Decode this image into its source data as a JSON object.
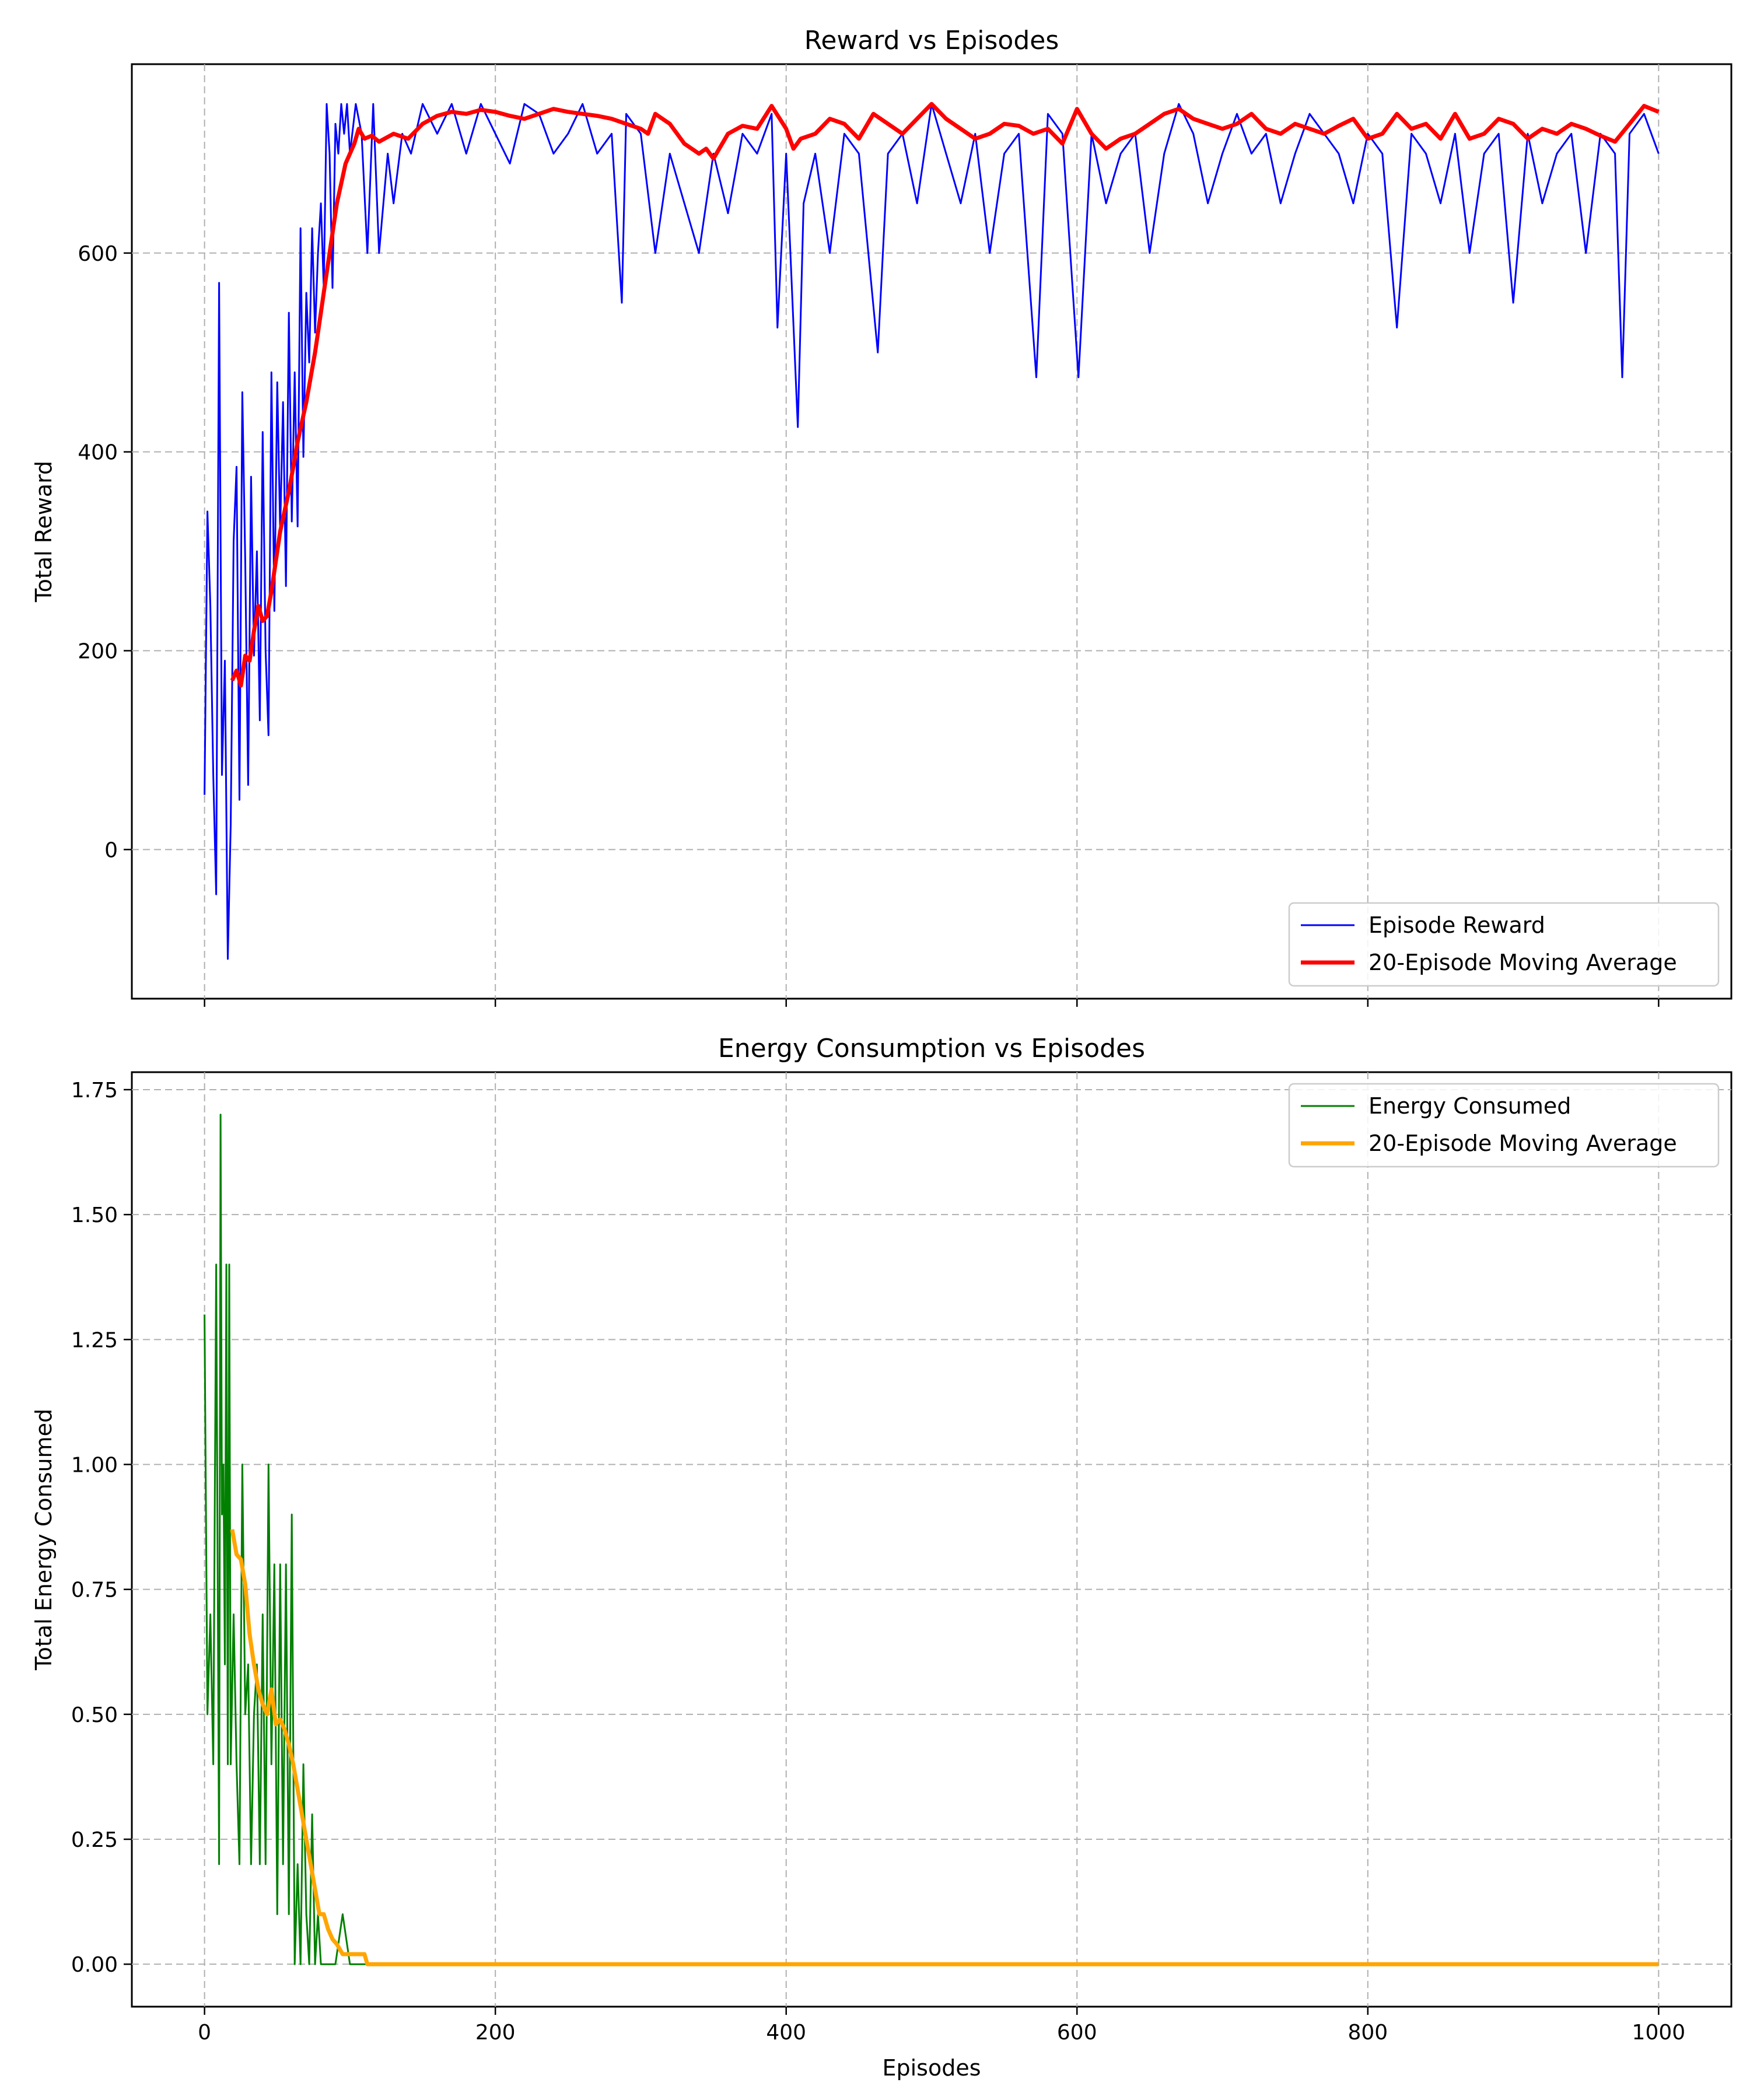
{
  "colors": {
    "reward": "#0000ff",
    "reward_ma": "#ff0000",
    "energy": "#008000",
    "energy_ma": "#ffa500",
    "grid": "#b0b0b0",
    "axes": "#000000"
  },
  "chart_data": [
    {
      "type": "line",
      "title": "Reward vs Episodes",
      "xlabel": "",
      "ylabel": "Total Reward",
      "xlim": [
        -50,
        1050
      ],
      "ylim": [
        -150,
        790
      ],
      "xticks": [
        0,
        200,
        400,
        600,
        800,
        1000
      ],
      "xtick_labels": [
        "",
        "",
        "",
        "",
        "",
        ""
      ],
      "yticks": [
        0,
        200,
        400,
        600
      ],
      "ytick_labels": [
        "0",
        "200",
        "400",
        "600"
      ],
      "grid": true,
      "legend_position": "bottom-right",
      "series": [
        {
          "name": "Episode Reward",
          "color": "#0000ff",
          "style": "thin",
          "x": [
            0,
            2,
            4,
            6,
            8,
            10,
            12,
            14,
            16,
            18,
            20,
            22,
            24,
            26,
            28,
            30,
            32,
            34,
            36,
            38,
            40,
            42,
            44,
            46,
            48,
            50,
            52,
            54,
            56,
            58,
            60,
            62,
            64,
            66,
            68,
            70,
            72,
            74,
            76,
            78,
            80,
            82,
            84,
            86,
            88,
            90,
            92,
            94,
            96,
            98,
            100,
            104,
            108,
            112,
            116,
            120,
            126,
            130,
            136,
            142,
            150,
            160,
            170,
            180,
            190,
            200,
            210,
            220,
            230,
            240,
            250,
            260,
            270,
            280,
            287,
            290,
            300,
            310,
            320,
            330,
            340,
            350,
            360,
            370,
            380,
            390,
            394,
            400,
            408,
            412,
            420,
            430,
            440,
            450,
            463,
            470,
            480,
            490,
            500,
            510,
            520,
            530,
            540,
            550,
            560,
            572,
            580,
            590,
            601,
            610,
            620,
            630,
            640,
            650,
            660,
            670,
            680,
            690,
            700,
            710,
            720,
            730,
            740,
            750,
            760,
            770,
            780,
            790,
            800,
            810,
            820,
            830,
            840,
            850,
            860,
            870,
            880,
            890,
            900,
            910,
            920,
            930,
            940,
            950,
            960,
            970,
            975,
            980,
            990,
            1000
          ],
          "y": [
            55,
            340,
            245,
            75,
            -45,
            570,
            75,
            190,
            -110,
            25,
            310,
            385,
            50,
            460,
            290,
            65,
            375,
            195,
            300,
            130,
            420,
            200,
            115,
            480,
            240,
            470,
            320,
            450,
            265,
            540,
            330,
            480,
            325,
            625,
            395,
            560,
            490,
            625,
            520,
            600,
            650,
            565,
            750,
            700,
            565,
            730,
            700,
            750,
            720,
            750,
            700,
            750,
            720,
            600,
            750,
            600,
            700,
            650,
            720,
            700,
            750,
            720,
            750,
            700,
            750,
            720,
            690,
            750,
            740,
            700,
            720,
            750,
            700,
            720,
            550,
            740,
            720,
            600,
            700,
            650,
            600,
            700,
            640,
            720,
            700,
            740,
            525,
            700,
            425,
            650,
            700,
            600,
            720,
            700,
            500,
            700,
            720,
            650,
            750,
            700,
            650,
            720,
            600,
            700,
            720,
            475,
            740,
            720,
            475,
            720,
            650,
            700,
            720,
            600,
            700,
            750,
            720,
            650,
            700,
            740,
            700,
            720,
            650,
            700,
            740,
            720,
            700,
            650,
            720,
            700,
            525,
            720,
            700,
            650,
            720,
            600,
            700,
            720,
            550,
            720,
            650,
            700,
            720,
            600,
            720,
            700,
            475,
            720,
            740,
            700
          ]
        },
        {
          "name": "20-Episode Moving Average",
          "color": "#ff0000",
          "style": "thick",
          "x": [
            19,
            22,
            25,
            28,
            31,
            34,
            37,
            40,
            43,
            46,
            49,
            52,
            55,
            58,
            61,
            64,
            67,
            70,
            73,
            76,
            79,
            82,
            85,
            88,
            91,
            94,
            97,
            100,
            103,
            106,
            110,
            115,
            120,
            130,
            140,
            150,
            160,
            170,
            180,
            190,
            200,
            210,
            220,
            230,
            240,
            250,
            260,
            270,
            280,
            290,
            300,
            305,
            310,
            320,
            330,
            340,
            345,
            350,
            360,
            370,
            380,
            390,
            400,
            405,
            410,
            420,
            430,
            440,
            450,
            460,
            470,
            480,
            490,
            500,
            510,
            520,
            530,
            540,
            550,
            560,
            570,
            580,
            590,
            600,
            610,
            620,
            630,
            640,
            650,
            660,
            670,
            680,
            690,
            700,
            710,
            720,
            730,
            740,
            750,
            760,
            770,
            780,
            790,
            800,
            810,
            820,
            830,
            840,
            850,
            860,
            870,
            880,
            890,
            900,
            910,
            920,
            930,
            940,
            950,
            960,
            970,
            980,
            990,
            1000
          ],
          "y": [
            170,
            180,
            165,
            195,
            190,
            220,
            245,
            230,
            235,
            260,
            290,
            320,
            340,
            360,
            385,
            410,
            430,
            450,
            475,
            500,
            530,
            560,
            590,
            620,
            650,
            670,
            690,
            700,
            710,
            725,
            715,
            718,
            712,
            720,
            715,
            730,
            738,
            742,
            740,
            744,
            742,
            738,
            735,
            740,
            745,
            742,
            740,
            738,
            735,
            730,
            725,
            720,
            740,
            730,
            710,
            700,
            705,
            695,
            720,
            728,
            725,
            748,
            725,
            705,
            715,
            720,
            735,
            730,
            715,
            740,
            730,
            720,
            735,
            750,
            735,
            725,
            715,
            720,
            730,
            728,
            720,
            725,
            710,
            745,
            720,
            705,
            715,
            720,
            730,
            740,
            745,
            735,
            730,
            725,
            730,
            740,
            725,
            720,
            730,
            725,
            720,
            728,
            735,
            715,
            720,
            740,
            725,
            730,
            715,
            740,
            715,
            720,
            735,
            730,
            715,
            725,
            720,
            730,
            725,
            718,
            712,
            730,
            748,
            742
          ]
        }
      ]
    },
    {
      "type": "line",
      "title": "Energy Consumption vs Episodes",
      "xlabel": "Episodes",
      "ylabel": "Total Energy Consumed",
      "xlim": [
        -50,
        1050
      ],
      "ylim": [
        -0.085,
        1.785
      ],
      "xticks": [
        0,
        200,
        400,
        600,
        800,
        1000
      ],
      "xtick_labels": [
        "0",
        "200",
        "400",
        "600",
        "800",
        "1000"
      ],
      "yticks": [
        0,
        0.25,
        0.5,
        0.75,
        1.0,
        1.25,
        1.5,
        1.75
      ],
      "ytick_labels": [
        "0.00",
        "0.25",
        "0.50",
        "0.75",
        "1.00",
        "1.25",
        "1.50",
        "1.75"
      ],
      "grid": true,
      "legend_position": "top-right",
      "series": [
        {
          "name": "Energy Consumed",
          "color": "#008000",
          "style": "thin",
          "x": [
            0,
            2,
            4,
            6,
            8,
            10,
            11,
            12,
            13,
            14,
            15,
            16,
            17,
            18,
            20,
            22,
            24,
            26,
            28,
            30,
            32,
            34,
            36,
            38,
            40,
            42,
            44,
            46,
            48,
            50,
            52,
            54,
            56,
            58,
            60,
            62,
            64,
            66,
            68,
            70,
            72,
            74,
            76,
            78,
            80,
            90,
            95,
            100,
            110,
            120,
            200,
            400,
            600,
            800,
            1000
          ],
          "y": [
            1.3,
            0.5,
            0.7,
            0.4,
            1.4,
            0.2,
            1.7,
            0.9,
            1.0,
            0.6,
            1.4,
            0.4,
            1.4,
            0.4,
            0.7,
            0.4,
            0.2,
            1.0,
            0.5,
            0.6,
            0.2,
            0.5,
            0.6,
            0.2,
            0.7,
            0.2,
            1.0,
            0.4,
            0.8,
            0.1,
            0.8,
            0.2,
            0.8,
            0.1,
            0.9,
            0.0,
            0.2,
            0.0,
            0.4,
            0.1,
            0.0,
            0.3,
            0.0,
            0.1,
            0.0,
            0.0,
            0.1,
            0.0,
            0.0,
            0.0,
            0.0,
            0.0,
            0.0,
            0.0,
            0.0
          ]
        },
        {
          "name": "20-Episode Moving Average",
          "color": "#ffa500",
          "style": "thick",
          "x": [
            19,
            22,
            25,
            28,
            31,
            34,
            37,
            40,
            43,
            46,
            49,
            52,
            55,
            58,
            61,
            64,
            67,
            70,
            73,
            76,
            79,
            82,
            85,
            88,
            91,
            95,
            100,
            105,
            110,
            112,
            200,
            400,
            600,
            800,
            1000
          ],
          "y": [
            0.87,
            0.82,
            0.81,
            0.76,
            0.66,
            0.6,
            0.55,
            0.52,
            0.5,
            0.55,
            0.48,
            0.49,
            0.47,
            0.44,
            0.4,
            0.35,
            0.3,
            0.25,
            0.2,
            0.15,
            0.1,
            0.1,
            0.07,
            0.05,
            0.04,
            0.02,
            0.02,
            0.02,
            0.02,
            0.0,
            0.0,
            0.0,
            0.0,
            0.0,
            0.0
          ]
        }
      ]
    }
  ]
}
